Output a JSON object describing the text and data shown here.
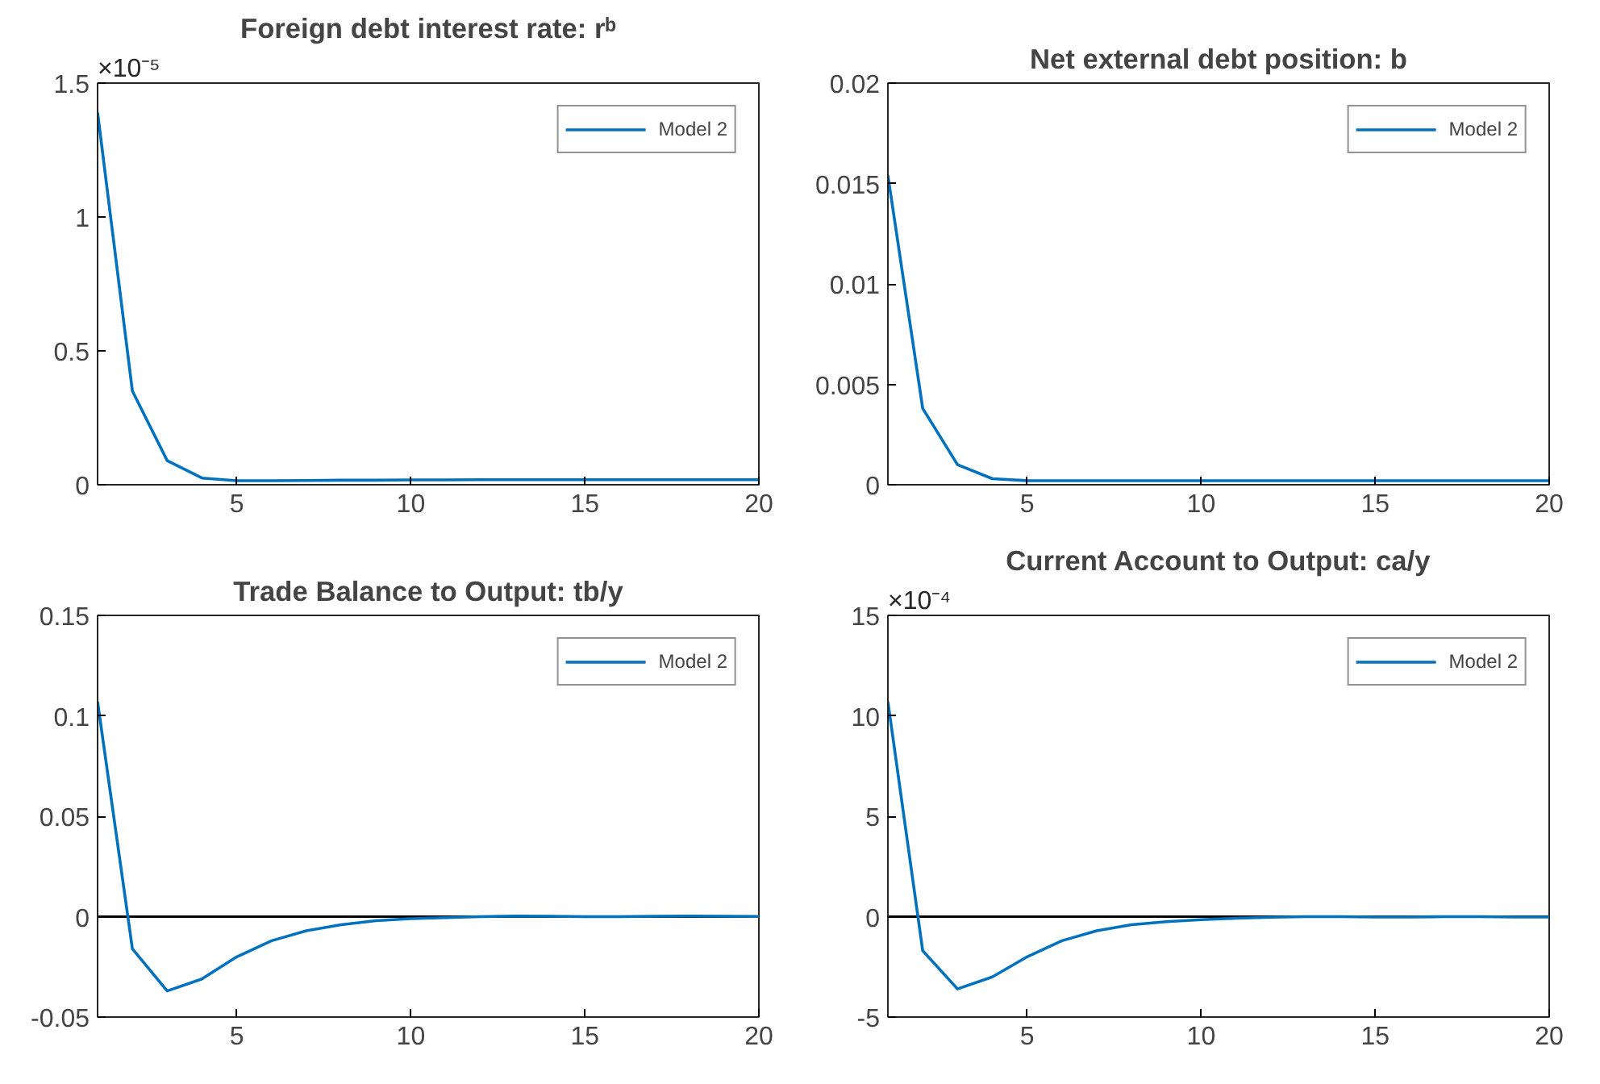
{
  "chart_data": [
    {
      "type": "line",
      "title": "Foreign debt interest rate: rᵇ",
      "annotations": [
        "×10⁻⁵"
      ],
      "x": [
        1,
        2,
        3,
        4,
        5,
        6,
        7,
        8,
        9,
        10,
        11,
        12,
        13,
        14,
        15,
        16,
        17,
        18,
        19,
        20
      ],
      "series": [
        {
          "name": "Model 2",
          "color": "#0072bd",
          "values": [
            1.39,
            0.35,
            0.09,
            0.025,
            0.015,
            0.015,
            0.016,
            0.017,
            0.017,
            0.018,
            0.018,
            0.019,
            0.019,
            0.019,
            0.019,
            0.019,
            0.019,
            0.019,
            0.019,
            0.019
          ]
        }
      ],
      "xlim": [
        1,
        20
      ],
      "xticks": [
        5,
        10,
        15,
        20
      ],
      "ylim": [
        0,
        1.5
      ],
      "yticks": [
        0,
        0.5,
        1,
        1.5
      ],
      "legend": "top right",
      "grid": false,
      "line_style": "solid"
    },
    {
      "type": "line",
      "title": "Net external debt position: b",
      "x": [
        1,
        2,
        3,
        4,
        5,
        6,
        7,
        8,
        9,
        10,
        11,
        12,
        13,
        14,
        15,
        16,
        17,
        18,
        19,
        20
      ],
      "series": [
        {
          "name": "Model 2",
          "color": "#0072bd",
          "values": [
            0.0154,
            0.0038,
            0.001,
            0.0003,
            0.0002,
            0.0002,
            0.0002,
            0.0002,
            0.0002,
            0.0002,
            0.0002,
            0.0002,
            0.0002,
            0.0002,
            0.0002,
            0.0002,
            0.0002,
            0.0002,
            0.0002,
            0.0002
          ]
        }
      ],
      "xlim": [
        1,
        20
      ],
      "xticks": [
        5,
        10,
        15,
        20
      ],
      "ylim": [
        0,
        0.02
      ],
      "yticks": [
        0,
        0.005,
        0.01,
        0.015,
        0.02
      ],
      "legend": "top right",
      "grid": false,
      "line_style": "solid"
    },
    {
      "type": "line",
      "title": "Trade Balance to Output: tb/y",
      "x": [
        1,
        2,
        3,
        4,
        5,
        6,
        7,
        8,
        9,
        10,
        11,
        12,
        13,
        14,
        15,
        16,
        17,
        18,
        19,
        20
      ],
      "series": [
        {
          "name": "Model 2",
          "color": "#0072bd",
          "values": [
            0.107,
            -0.016,
            -0.037,
            -0.031,
            -0.02,
            -0.012,
            -0.007,
            -0.004,
            -0.002,
            -0.001,
            -0.0005,
            0,
            0.0003,
            0.0002,
            0,
            0,
            0.0002,
            0.0003,
            0.0002,
            0.0001
          ]
        }
      ],
      "xlim": [
        1,
        20
      ],
      "xticks": [
        5,
        10,
        15,
        20
      ],
      "ylim": [
        -0.05,
        0.15
      ],
      "yticks": [
        -0.05,
        0,
        0.05,
        0.1,
        0.15
      ],
      "legend": "top right",
      "grid": false,
      "line_style": "solid",
      "ref_lines": [
        {
          "axis": "y",
          "value": 0,
          "color": "#000000"
        }
      ]
    },
    {
      "type": "line",
      "title": "Current Account to Output: ca/y",
      "annotations": [
        "×10⁻⁴"
      ],
      "x": [
        1,
        2,
        3,
        4,
        5,
        6,
        7,
        8,
        9,
        10,
        11,
        12,
        13,
        14,
        15,
        16,
        17,
        18,
        19,
        20
      ],
      "series": [
        {
          "name": "Model 2",
          "color": "#0072bd",
          "values": [
            10.7,
            -1.7,
            -3.6,
            -3.0,
            -2.0,
            -1.2,
            -0.7,
            -0.4,
            -0.25,
            -0.15,
            -0.08,
            -0.03,
            0,
            0,
            -0.02,
            -0.02,
            0,
            0,
            -0.02,
            -0.02
          ]
        }
      ],
      "xlim": [
        1,
        20
      ],
      "xticks": [
        5,
        10,
        15,
        20
      ],
      "ylim": [
        -5,
        15
      ],
      "yticks": [
        -5,
        0,
        5,
        10,
        15
      ],
      "legend": "top right",
      "grid": false,
      "line_style": "solid",
      "ref_lines": [
        {
          "axis": "y",
          "value": 0,
          "color": "#000000"
        }
      ]
    }
  ]
}
